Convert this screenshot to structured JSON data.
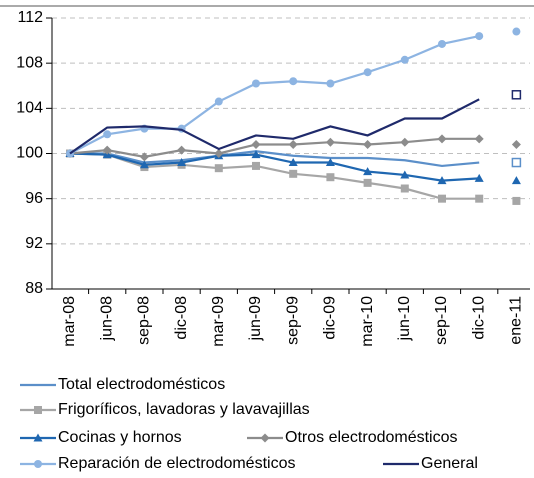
{
  "chart_data": {
    "type": "line",
    "categories": [
      "mar-08",
      "jun-08",
      "sep-08",
      "dic-08",
      "mar-09",
      "jun-09",
      "sep-09",
      "dic-09",
      "mar-10",
      "jun-10",
      "sep-10",
      "dic-10",
      "ene-11"
    ],
    "ylim": [
      88,
      112
    ],
    "yticks": [
      88,
      92,
      96,
      100,
      104,
      108,
      112
    ],
    "grid": true,
    "last_point_detached": true,
    "series": [
      {
        "name": "Total electrodomésticos",
        "color": "#5b8fc9",
        "marker": "none",
        "last_marker": "square-open",
        "values": [
          100,
          100,
          99.2,
          99.4,
          99.8,
          100.2,
          99.8,
          99.6,
          99.6,
          99.4,
          98.9,
          99.2,
          99.2
        ]
      },
      {
        "name": "Frigoríficos, lavadoras y lavavajillas",
        "color": "#a6a6a6",
        "marker": "square",
        "last_marker": "square",
        "values": [
          100,
          99.9,
          98.8,
          99.0,
          98.7,
          98.9,
          98.2,
          97.9,
          97.4,
          96.9,
          96.0,
          96.0,
          95.8
        ]
      },
      {
        "name": "Cocinas y hornos",
        "color": "#1f67b1",
        "marker": "triangle",
        "last_marker": "triangle",
        "values": [
          100,
          99.9,
          99.0,
          99.2,
          99.8,
          99.9,
          99.2,
          99.2,
          98.4,
          98.1,
          97.6,
          97.8,
          97.6
        ]
      },
      {
        "name": "Otros electrodomésticos",
        "color": "#8c8c8c",
        "marker": "diamond",
        "last_marker": "diamond",
        "values": [
          100,
          100.3,
          99.7,
          100.3,
          100.0,
          100.8,
          100.8,
          101.0,
          100.8,
          101.0,
          101.3,
          101.3,
          100.8
        ]
      },
      {
        "name": "Reparación de electrodomésticos",
        "color": "#8db4e2",
        "marker": "circle",
        "last_marker": "circle",
        "values": [
          100,
          101.7,
          102.2,
          102.2,
          104.6,
          106.2,
          106.4,
          106.2,
          107.2,
          108.3,
          109.7,
          110.4,
          110.8
        ]
      },
      {
        "name": "General",
        "color": "#1f2a6b",
        "marker": "none",
        "last_marker": "square-open",
        "values": [
          100,
          102.3,
          102.4,
          102.1,
          100.4,
          101.6,
          101.3,
          102.4,
          101.6,
          103.1,
          103.1,
          104.8,
          105.2
        ]
      }
    ]
  }
}
